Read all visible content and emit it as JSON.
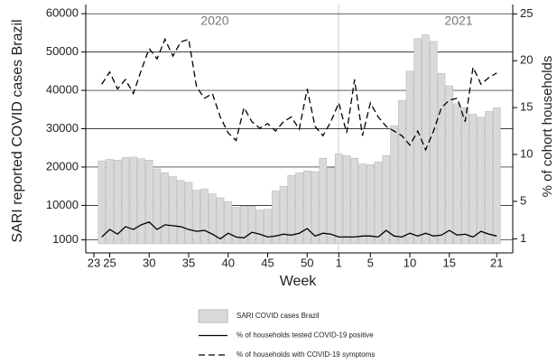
{
  "chart_data": {
    "type": "bar_line",
    "annotations": [
      "2020",
      "2021"
    ],
    "x_label": "Week",
    "y_label": "SARI reported COVID cases Brazil",
    "y2_label": "% of cohort households",
    "categories": [
      "23",
      null,
      "25",
      null,
      null,
      null,
      null,
      "30",
      null,
      null,
      null,
      null,
      "35",
      null,
      null,
      null,
      null,
      "40",
      null,
      null,
      null,
      null,
      "45",
      null,
      null,
      null,
      null,
      "50",
      null,
      null,
      null,
      "1",
      null,
      null,
      null,
      "5",
      null,
      null,
      null,
      null,
      "10",
      null,
      null,
      null,
      null,
      "15",
      null,
      null,
      null,
      null,
      null,
      "21"
    ],
    "ylim": [
      -2400,
      62400
    ],
    "yticks": [
      1000,
      10000,
      20000,
      30000,
      40000,
      50000,
      60000
    ],
    "y2lim": [
      -0.5,
      26
    ],
    "y2ticks": [
      1,
      5,
      10,
      15,
      20,
      25
    ],
    "grid": true,
    "series": [
      {
        "name": "SARI COVID cases Brazil",
        "kind": "bar",
        "color": "#d9d9d9",
        "values": [
          null,
          21600,
          22000,
          21800,
          22500,
          22600,
          22200,
          21800,
          19500,
          18500,
          17500,
          16500,
          16000,
          14000,
          14300,
          13000,
          12000,
          11000,
          9500,
          9800,
          9800,
          8800,
          9000,
          13800,
          15000,
          17800,
          18500,
          19000,
          18800,
          22300,
          19800,
          23400,
          23000,
          22300,
          20800,
          20600,
          21300,
          23000,
          30800,
          37400,
          45000,
          53500,
          54500,
          52800,
          44400,
          41200,
          36500,
          35500,
          33800,
          33000,
          34500,
          35500
        ]
      },
      {
        "name": "% of households tested COVID-19 positive",
        "kind": "line",
        "dash": false,
        "color": "#000000",
        "axis": "y2",
        "values": [
          null,
          1.2,
          2,
          1.5,
          2.3,
          2,
          2.5,
          2.8,
          2,
          2.5,
          2.4,
          2.3,
          2,
          1.8,
          1.9,
          1.5,
          1,
          1.6,
          1.2,
          1.1,
          1.7,
          1.5,
          1.2,
          1.3,
          1.5,
          1.4,
          1.6,
          2.1,
          1.3,
          1.6,
          1.5,
          1.2,
          1.2,
          1.2,
          1.3,
          1.3,
          1.2,
          1.9,
          1.3,
          1.2,
          1.6,
          1.3,
          1.6,
          1.3,
          1.4,
          1.9,
          1.4,
          1.5,
          1.2,
          1.8,
          1.5,
          1.3
        ]
      },
      {
        "name": "% of households with COVID-19 symptoms",
        "kind": "line",
        "dash": true,
        "color": "#000000",
        "axis": "y2",
        "values": [
          null,
          17.5,
          18.8,
          17,
          18,
          16.5,
          19,
          21.3,
          20.2,
          22.3,
          20.5,
          22,
          22.3,
          17.2,
          16,
          16.5,
          14,
          12.3,
          11.5,
          15,
          13.5,
          12.8,
          13.3,
          12.5,
          13.5,
          14,
          12.7,
          17,
          13,
          12,
          13.5,
          15.5,
          12.3,
          18,
          12,
          15.5,
          14,
          13,
          12.5,
          12,
          11,
          12.5,
          10.5,
          12.5,
          15,
          15.8,
          16,
          13.5,
          19.3,
          17.5,
          18.2,
          18.7
        ]
      }
    ]
  }
}
